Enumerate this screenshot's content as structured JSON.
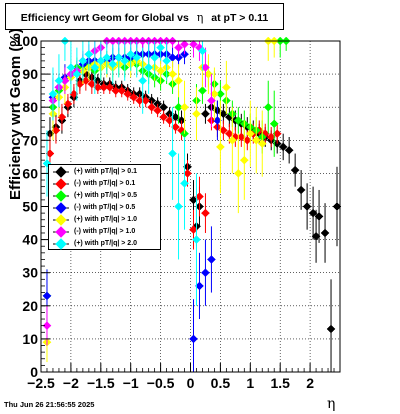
{
  "title_main": "Efficiency wrt Geom for Global vs",
  "title_symbol": "η",
  "title_cut": "at pT > 0.11",
  "datestamp": "Thu Jun 26 21:56:55 2025",
  "chart_data": {
    "type": "scatter",
    "title": "Efficiency wrt Geom for Global vs η at pT > 0.11",
    "xlabel": "η",
    "ylabel": "Efficiency wrt Geom (%)",
    "xlim": [
      -2.5,
      2.5
    ],
    "ylim": [
      0,
      100
    ],
    "x_ticks": [
      -2.5,
      -2,
      -1.5,
      -1,
      -0.5,
      0,
      0.5,
      1,
      1.5,
      2
    ],
    "x_tick_labels": [
      "−2.5",
      "−2",
      "−1.5",
      "−1",
      "−0.5",
      "0",
      "0.5",
      "1",
      "1.5",
      "2"
    ],
    "y_ticks": [
      0,
      10,
      20,
      30,
      40,
      50,
      60,
      70,
      80,
      90,
      100
    ],
    "y_tick_labels": [
      "0",
      "10",
      "20",
      "30",
      "40",
      "50",
      "60",
      "70",
      "80",
      "90",
      "100"
    ],
    "grid": true,
    "legend_position": "middle-left",
    "series": [
      {
        "name": "(+) with pT/|q| > 0.1",
        "color": "#000000",
        "x": [
          -2.35,
          -2.25,
          -2.15,
          -2.05,
          -1.95,
          -1.85,
          -1.75,
          -1.65,
          -1.55,
          -1.45,
          -1.35,
          -1.25,
          -1.15,
          -1.05,
          -0.95,
          -0.85,
          -0.75,
          -0.65,
          -0.55,
          -0.45,
          -0.35,
          -0.25,
          -0.15,
          -0.05,
          0.05,
          0.1,
          0.15,
          0.25,
          0.35,
          0.45,
          0.55,
          0.65,
          0.75,
          0.85,
          0.95,
          1.05,
          1.15,
          1.25,
          1.35,
          1.45,
          1.55,
          1.65,
          1.75,
          1.85,
          1.95,
          2.05,
          2.1,
          2.15,
          2.25,
          2.35,
          2.45
        ],
        "y": [
          72,
          74,
          76,
          80,
          83,
          88,
          90,
          89,
          88,
          87,
          87,
          86,
          86,
          85,
          84,
          84,
          83,
          82,
          81,
          80,
          78,
          77,
          76,
          62,
          52,
          44,
          50,
          78,
          80,
          79,
          78,
          77,
          76,
          75,
          74,
          73,
          72,
          71,
          70,
          69,
          68,
          67,
          61,
          55,
          50,
          48,
          41,
          47,
          42,
          13,
          50
        ],
        "err": [
          5,
          4,
          4,
          3,
          3,
          3,
          3,
          3,
          2,
          2,
          2,
          2,
          2,
          2,
          2,
          2,
          2,
          2,
          2,
          2,
          2,
          2,
          3,
          4,
          6,
          6,
          6,
          3,
          3,
          3,
          3,
          3,
          3,
          3,
          3,
          3,
          3,
          3,
          3,
          3,
          4,
          4,
          5,
          6,
          7,
          8,
          8,
          8,
          9,
          15,
          12
        ]
      },
      {
        "name": "(-) with pT/|q| > 0.1",
        "color": "#ff0000",
        "x": [
          -2.35,
          -2.25,
          -2.15,
          -2.05,
          -1.95,
          -1.85,
          -1.75,
          -1.65,
          -1.55,
          -1.45,
          -1.35,
          -1.25,
          -1.15,
          -1.05,
          -0.95,
          -0.85,
          -0.75,
          -0.65,
          -0.55,
          -0.45,
          -0.35,
          -0.25,
          -0.15,
          -0.05,
          0.05,
          0.15,
          0.25,
          0.35,
          0.45,
          0.55,
          0.65,
          0.75,
          0.85,
          0.95,
          1.05,
          1.15,
          1.25,
          1.35,
          1.45
        ],
        "y": [
          66,
          73,
          77,
          81,
          84,
          87,
          88,
          87,
          86,
          86,
          86,
          85,
          85,
          84,
          83,
          82,
          82,
          80,
          79,
          77,
          76,
          74,
          73,
          60,
          43,
          53,
          48,
          76,
          74,
          73,
          72,
          71,
          71,
          70,
          72,
          73,
          72,
          71,
          72
        ],
        "err": [
          6,
          4,
          4,
          3,
          3,
          3,
          3,
          3,
          2,
          2,
          2,
          2,
          2,
          2,
          2,
          2,
          2,
          2,
          2,
          2,
          2,
          2,
          3,
          4,
          6,
          6,
          6,
          3,
          3,
          3,
          3,
          3,
          3,
          3,
          3,
          3,
          3,
          3,
          3
        ]
      },
      {
        "name": "(+) with pT/|q| > 0.5",
        "color": "#00ff00",
        "x": [
          -2.4,
          -2.3,
          -2.2,
          -2.1,
          -2.0,
          -1.9,
          -1.8,
          -1.7,
          -1.6,
          -1.5,
          -1.4,
          -1.3,
          -1.2,
          -1.1,
          -1.0,
          -0.9,
          -0.8,
          -0.7,
          -0.6,
          -0.5,
          -0.4,
          -0.3,
          -0.2,
          -0.1,
          0.1,
          0.2,
          0.3,
          0.4,
          0.5,
          0.6,
          0.7,
          0.8,
          0.9,
          1.0,
          1.1,
          1.2,
          1.3,
          1.4,
          1.5,
          1.6
        ],
        "y": [
          23,
          80,
          85,
          88,
          90,
          92,
          92,
          93,
          91,
          92,
          93,
          92,
          93,
          92,
          94,
          93,
          91,
          90,
          89,
          88,
          90,
          87,
          80,
          72,
          82,
          85,
          90,
          87,
          84,
          82,
          78,
          76,
          75,
          74,
          73,
          71,
          80,
          75,
          100,
          100
        ],
        "err": [
          8,
          6,
          5,
          4,
          3,
          3,
          3,
          3,
          3,
          3,
          3,
          3,
          3,
          3,
          3,
          3,
          3,
          3,
          3,
          3,
          3,
          3,
          5,
          7,
          5,
          4,
          4,
          4,
          4,
          4,
          4,
          4,
          4,
          4,
          4,
          5,
          8,
          10,
          5,
          3
        ]
      },
      {
        "name": "(-) with pT/|q| > 0.5",
        "color": "#0000ff",
        "x": [
          -2.4,
          -2.3,
          -2.2,
          -2.1,
          -2.0,
          -1.9,
          -1.8,
          -1.7,
          -1.6,
          -1.5,
          -1.4,
          -1.3,
          -1.2,
          -1.1,
          -1.0,
          -0.9,
          -0.8,
          -0.7,
          -0.6,
          -0.5,
          -0.4,
          -0.3,
          -0.2,
          -0.1,
          0.05,
          0.15,
          0.25,
          0.35,
          0.45
        ],
        "y": [
          23,
          83,
          86,
          89,
          90,
          91,
          93,
          94,
          94,
          94,
          94,
          95,
          95,
          95,
          95,
          96,
          96,
          96,
          96,
          96,
          96,
          95,
          95,
          96,
          10,
          26,
          30,
          34,
          76
        ],
        "err": [
          8,
          6,
          4,
          4,
          3,
          3,
          3,
          3,
          3,
          3,
          3,
          3,
          3,
          3,
          3,
          3,
          3,
          3,
          3,
          3,
          3,
          3,
          3,
          3,
          12,
          10,
          10,
          10,
          6
        ]
      },
      {
        "name": "(+) with pT/|q| > 1.0",
        "color": "#ffff00",
        "x": [
          -2.4,
          -2.3,
          -2.2,
          -2.1,
          -2.0,
          -1.9,
          -1.8,
          -1.7,
          -1.6,
          -1.5,
          -1.4,
          -1.3,
          -1.2,
          -1.1,
          -1.0,
          -0.9,
          -0.8,
          -0.7,
          -0.6,
          -0.5,
          -0.4,
          -0.3,
          -0.2,
          -0.1,
          0.1,
          0.2,
          0.3,
          0.4,
          0.5,
          0.6,
          0.7,
          0.8,
          0.9,
          1.0,
          1.1,
          1.2,
          1.3,
          1.4
        ],
        "y": [
          9,
          78,
          83,
          86,
          89,
          90,
          91,
          92,
          93,
          92,
          93,
          92,
          93,
          94,
          93,
          94,
          93,
          92,
          92,
          91,
          92,
          90,
          88,
          80,
          78,
          92,
          90,
          84,
          68,
          86,
          70,
          60,
          64,
          72,
          70,
          69,
          100,
          100
        ],
        "err": [
          6,
          8,
          6,
          5,
          4,
          4,
          4,
          4,
          4,
          4,
          4,
          4,
          4,
          4,
          4,
          4,
          4,
          4,
          4,
          4,
          4,
          4,
          5,
          8,
          8,
          6,
          6,
          8,
          14,
          8,
          10,
          12,
          12,
          10,
          10,
          10,
          6,
          5
        ]
      },
      {
        "name": "(-) with pT/|q| > 1.0",
        "color": "#ff00ff",
        "x": [
          -2.4,
          -2.3,
          -2.2,
          -2.1,
          -2.0,
          -1.9,
          -1.8,
          -1.7,
          -1.6,
          -1.5,
          -1.4,
          -1.3,
          -1.2,
          -1.1,
          -1.0,
          -0.9,
          -0.8,
          -0.7,
          -0.6,
          -0.5,
          -0.4,
          -0.3,
          -0.2,
          -0.1,
          0.05,
          0.15,
          0.25,
          0.35
        ],
        "y": [
          14,
          82,
          86,
          88,
          90,
          91,
          94,
          96,
          97,
          98,
          100,
          100,
          100,
          100,
          100,
          100,
          100,
          100,
          100,
          100,
          100,
          100,
          98,
          99,
          99,
          98,
          92,
          82
        ],
        "err": [
          6,
          6,
          4,
          4,
          3,
          3,
          3,
          3,
          3,
          2,
          2,
          2,
          2,
          2,
          2,
          2,
          2,
          2,
          2,
          2,
          2,
          2,
          3,
          3,
          4,
          4,
          6,
          8
        ]
      },
      {
        "name": "(+) with pT/|q| > 2.0",
        "color": "#00ffff",
        "x": [
          -2.4,
          -2.3,
          -2.2,
          -2.1,
          -2.0,
          -1.9,
          -1.8,
          -1.7,
          -1.6,
          -1.5,
          -1.4,
          -1.3,
          -1.2,
          -1.1,
          -1.0,
          -0.9,
          -0.8,
          -0.7,
          -0.6,
          -0.5,
          -0.4,
          -0.3,
          -0.2,
          -0.1,
          0.1,
          0.2
        ],
        "y": [
          63,
          84,
          88,
          100,
          92,
          90,
          94,
          96,
          92,
          94,
          95,
          93,
          95,
          94,
          96,
          95,
          88,
          92,
          95,
          98,
          94,
          66,
          50,
          57,
          40,
          97
        ],
        "err": [
          10,
          8,
          8,
          6,
          8,
          8,
          6,
          5,
          8,
          6,
          5,
          6,
          6,
          6,
          5,
          6,
          10,
          8,
          6,
          4,
          6,
          14,
          16,
          14,
          20,
          6
        ]
      }
    ]
  }
}
